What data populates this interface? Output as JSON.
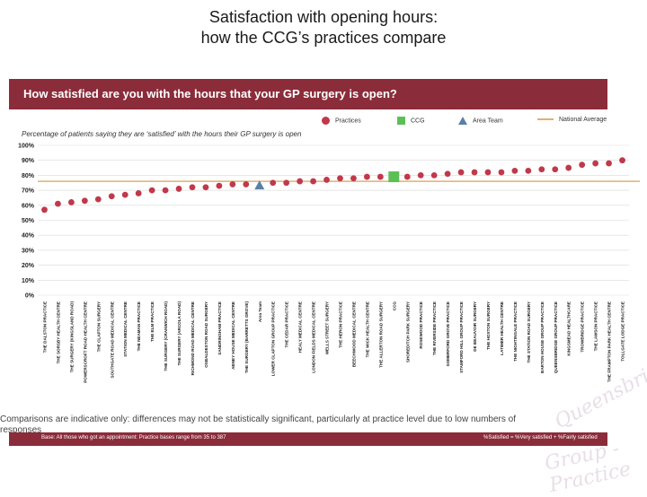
{
  "title": {
    "line1": "Satisfaction with opening hours:",
    "line2": "how the CCG’s practices compare"
  },
  "banner": {
    "question": "How satisfied are you with the hours that your GP surgery is open?"
  },
  "legend": {
    "practices": "Practices",
    "ccg": "CCG",
    "area_team": "Area Team",
    "national": "National Average"
  },
  "logo_text": {
    "word1": "Queensbridge",
    "word2": "Group - Practice"
  },
  "colors": {
    "brand_banner": "#8b2c3a",
    "practice_dot": "#c0394b",
    "ccg_marker": "#5cbf56",
    "area_team_marker": "#5b7fa6",
    "national_line": "#e0b070",
    "gridline": "#d9d9d9"
  },
  "chart_data": {
    "type": "scatter",
    "title": "Percentage of patients saying they are ‘satisfied’ with the hours their GP surgery is open",
    "ylim": [
      0,
      100
    ],
    "yticks": [
      "0%",
      "10%",
      "20%",
      "30%",
      "40%",
      "50%",
      "60%",
      "70%",
      "80%",
      "90%",
      "100%"
    ],
    "grid": true,
    "legend_position": "top",
    "national_average": 76,
    "categories": [
      "THE DALSTON PRACTICE",
      "THE SORSBY HEALTH CENTRE",
      "THE SURGERY (KINGSLAND ROAD)",
      "POWERSCROFT ROAD HEALTH CENTRE",
      "THE CLAPTON SURGERY",
      "SOUTHGATE ROAD MEDICAL CENTRE",
      "STATION MEDICAL CENTRE",
      "THE NEAMAN PRACTICE",
      "THE ELM PRACTICE",
      "THE SURGERY (CRANWICH ROAD)",
      "THE SURGERY (ARCOLA ROAD)",
      "RICHMOND ROAD MEDICAL CENTRE",
      "OSBALDESTON ROAD SURGERY",
      "SANDRINGHAM PRACTICE",
      "ABNEY HOUSE MEDICAL CENTRE",
      "THE SURGERY (BARRETTS GROVE)",
      "Area Team",
      "LOWER CLAPTON GROUP PRACTICE",
      "THE CEDAR PRACTICE",
      "HEALY MEDICAL CENTRE",
      "LONDON FIELDS MEDICAL CENTRE",
      "WELLS STREET SURGERY",
      "THE HERON PRACTICE",
      "BEECHWOOD MEDICAL CENTRE",
      "THE WICK HEALTH CENTRE",
      "THE ALLERTON ROAD SURGERY",
      "CCG",
      "SHOREDITCH PARK SURGERY",
      "ROSEWOOD PRACTICE",
      "THE RIVERSIDE PRACTICE",
      "SOMERFORD GROVE PRACTICE",
      "STAMFORD HILL GROUP PRACTICE",
      "DE BEAUVOIR SURGERY",
      "THE HOXTON SURGERY",
      "LATIMER HEALTH CENTRE",
      "THE NIGHTINGALE PRACTICE",
      "THE STATION ROAD SURGERY",
      "BARTON HOUSE GROUP PRACTICE",
      "QUEENSBRIDGE GROUP PRACTICE",
      "KINGSMEAD HEALTHCARE",
      "TROWBRIDGE PRACTICE",
      "THE LAWSON PRACTICE",
      "THE FRAMPTON PARK HEALTH CENTRE",
      "TOLLGATE LODGE PRACTICE"
    ],
    "series": [
      {
        "name": "Practices",
        "marker": "circle",
        "values": [
          57,
          61,
          62,
          63,
          64,
          66,
          67,
          68,
          70,
          70,
          71,
          72,
          72,
          73,
          74,
          74,
          null,
          75,
          75,
          76,
          76,
          77,
          78,
          78,
          79,
          79,
          null,
          79,
          80,
          80,
          81,
          82,
          82,
          82,
          82,
          83,
          83,
          84,
          84,
          85,
          87,
          88,
          88,
          90
        ]
      },
      {
        "name": "CCG",
        "marker": "square",
        "values": [
          null,
          null,
          null,
          null,
          null,
          null,
          null,
          null,
          null,
          null,
          null,
          null,
          null,
          null,
          null,
          null,
          null,
          null,
          null,
          null,
          null,
          null,
          null,
          null,
          null,
          null,
          79,
          null,
          null,
          null,
          null,
          null,
          null,
          null,
          null,
          null,
          null,
          null,
          null,
          null,
          null,
          null,
          null,
          null
        ]
      },
      {
        "name": "Area Team",
        "marker": "triangle",
        "values": [
          null,
          null,
          null,
          null,
          null,
          null,
          null,
          null,
          null,
          null,
          null,
          null,
          null,
          null,
          null,
          null,
          73,
          null,
          null,
          null,
          null,
          null,
          null,
          null,
          null,
          null,
          null,
          null,
          null,
          null,
          null,
          null,
          null,
          null,
          null,
          null,
          null,
          null,
          null,
          null,
          null,
          null,
          null,
          null
        ]
      }
    ]
  },
  "note": {
    "line1": "Comparisons are indicative only: differences may not be statistically significant, particularly at practice level due to low numbers of",
    "line2": "responses"
  },
  "footer": {
    "base": "Base: All those who got an appointment: Practice bases range from 35 to 387",
    "key": "%Satisfied = %Very satisfied + %Fairly satisfied"
  }
}
